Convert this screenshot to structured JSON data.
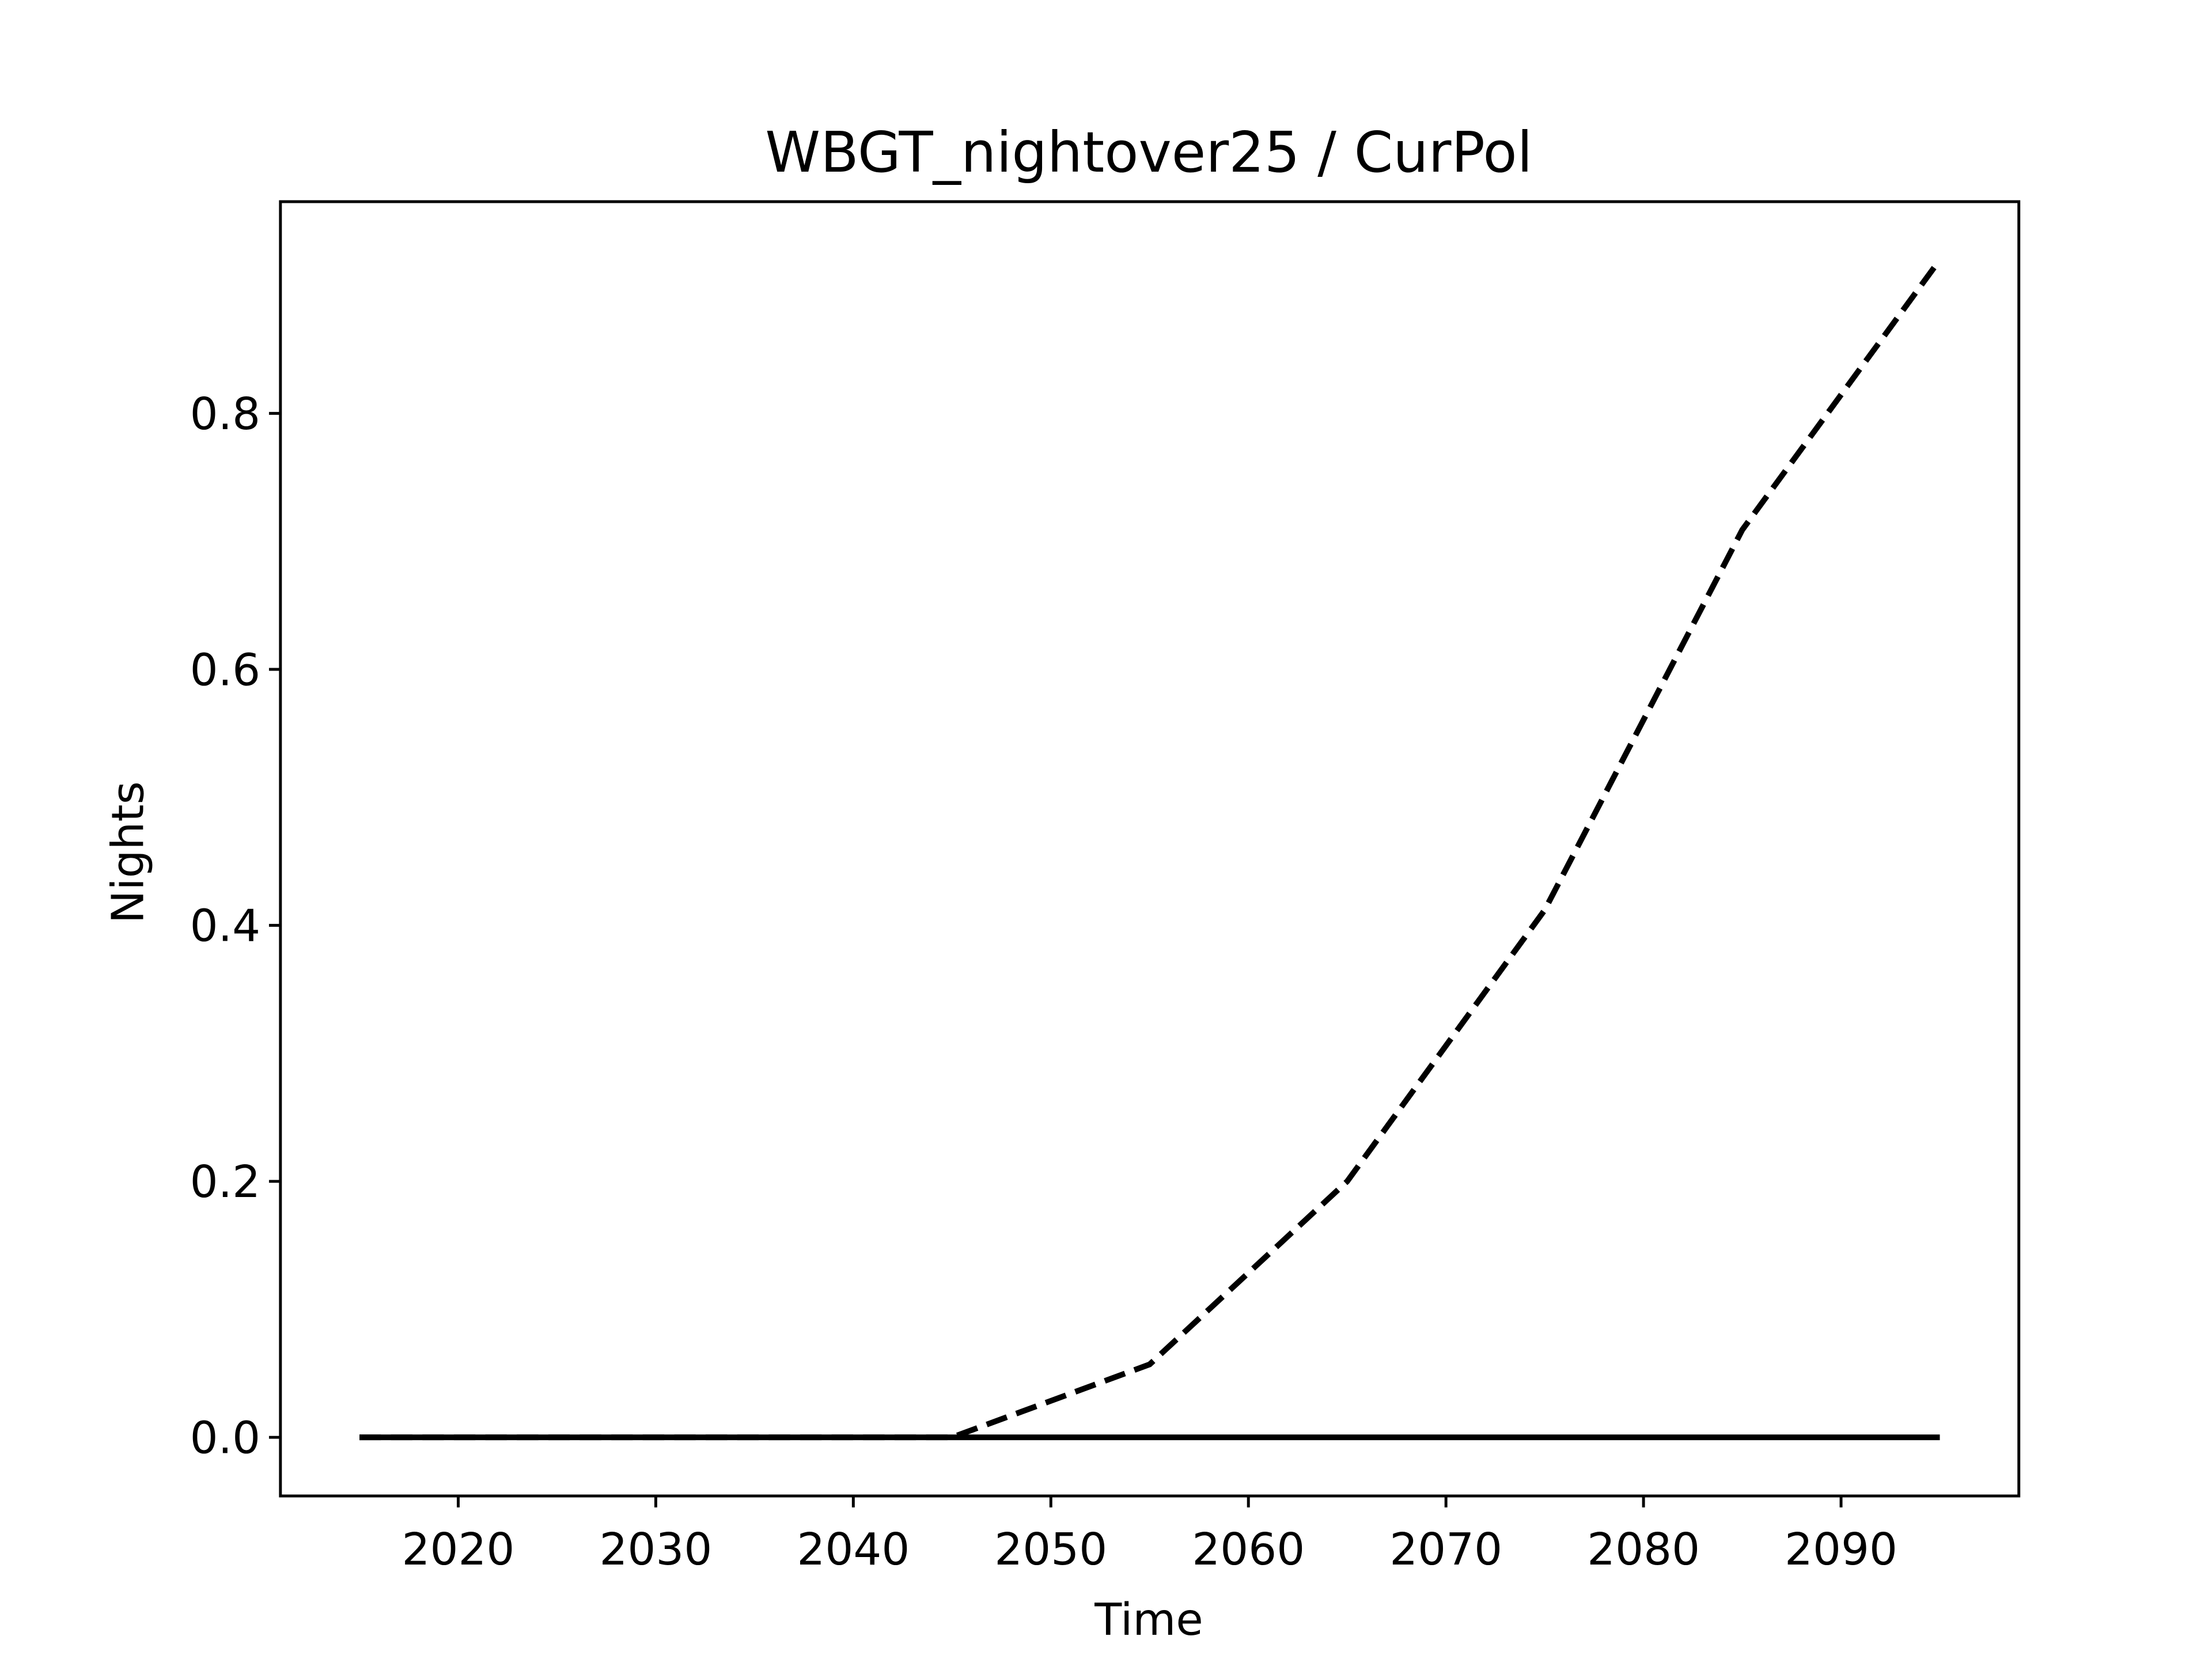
{
  "chart_data": {
    "type": "line",
    "title": "WBGT_nightover25 / CurPol",
    "xlabel": "Time",
    "ylabel": "Nights",
    "x": [
      2015,
      2025,
      2035,
      2045,
      2055,
      2065,
      2075,
      2085,
      2095
    ],
    "series": [
      {
        "color": "#000000",
        "linestyle": "dashed",
        "values": [
          0,
          0,
          0,
          0,
          0.057,
          0.2,
          0.412,
          0.709,
          0.92
        ]
      },
      {
        "color": "#000000",
        "linestyle": "solid",
        "values": [
          0,
          0,
          0,
          0,
          0,
          0,
          0,
          0,
          0
        ]
      }
    ],
    "xlim": [
      2011,
      2099
    ],
    "xticks": [
      2020,
      2030,
      2040,
      2050,
      2060,
      2070,
      2080,
      2090
    ],
    "ylim": [
      -0.0458,
      0.9654
    ],
    "yticks": [
      {
        "value": 0,
        "label": "0.0"
      },
      0.2,
      0.4,
      0.6,
      0.8
    ],
    "grid": false
  }
}
